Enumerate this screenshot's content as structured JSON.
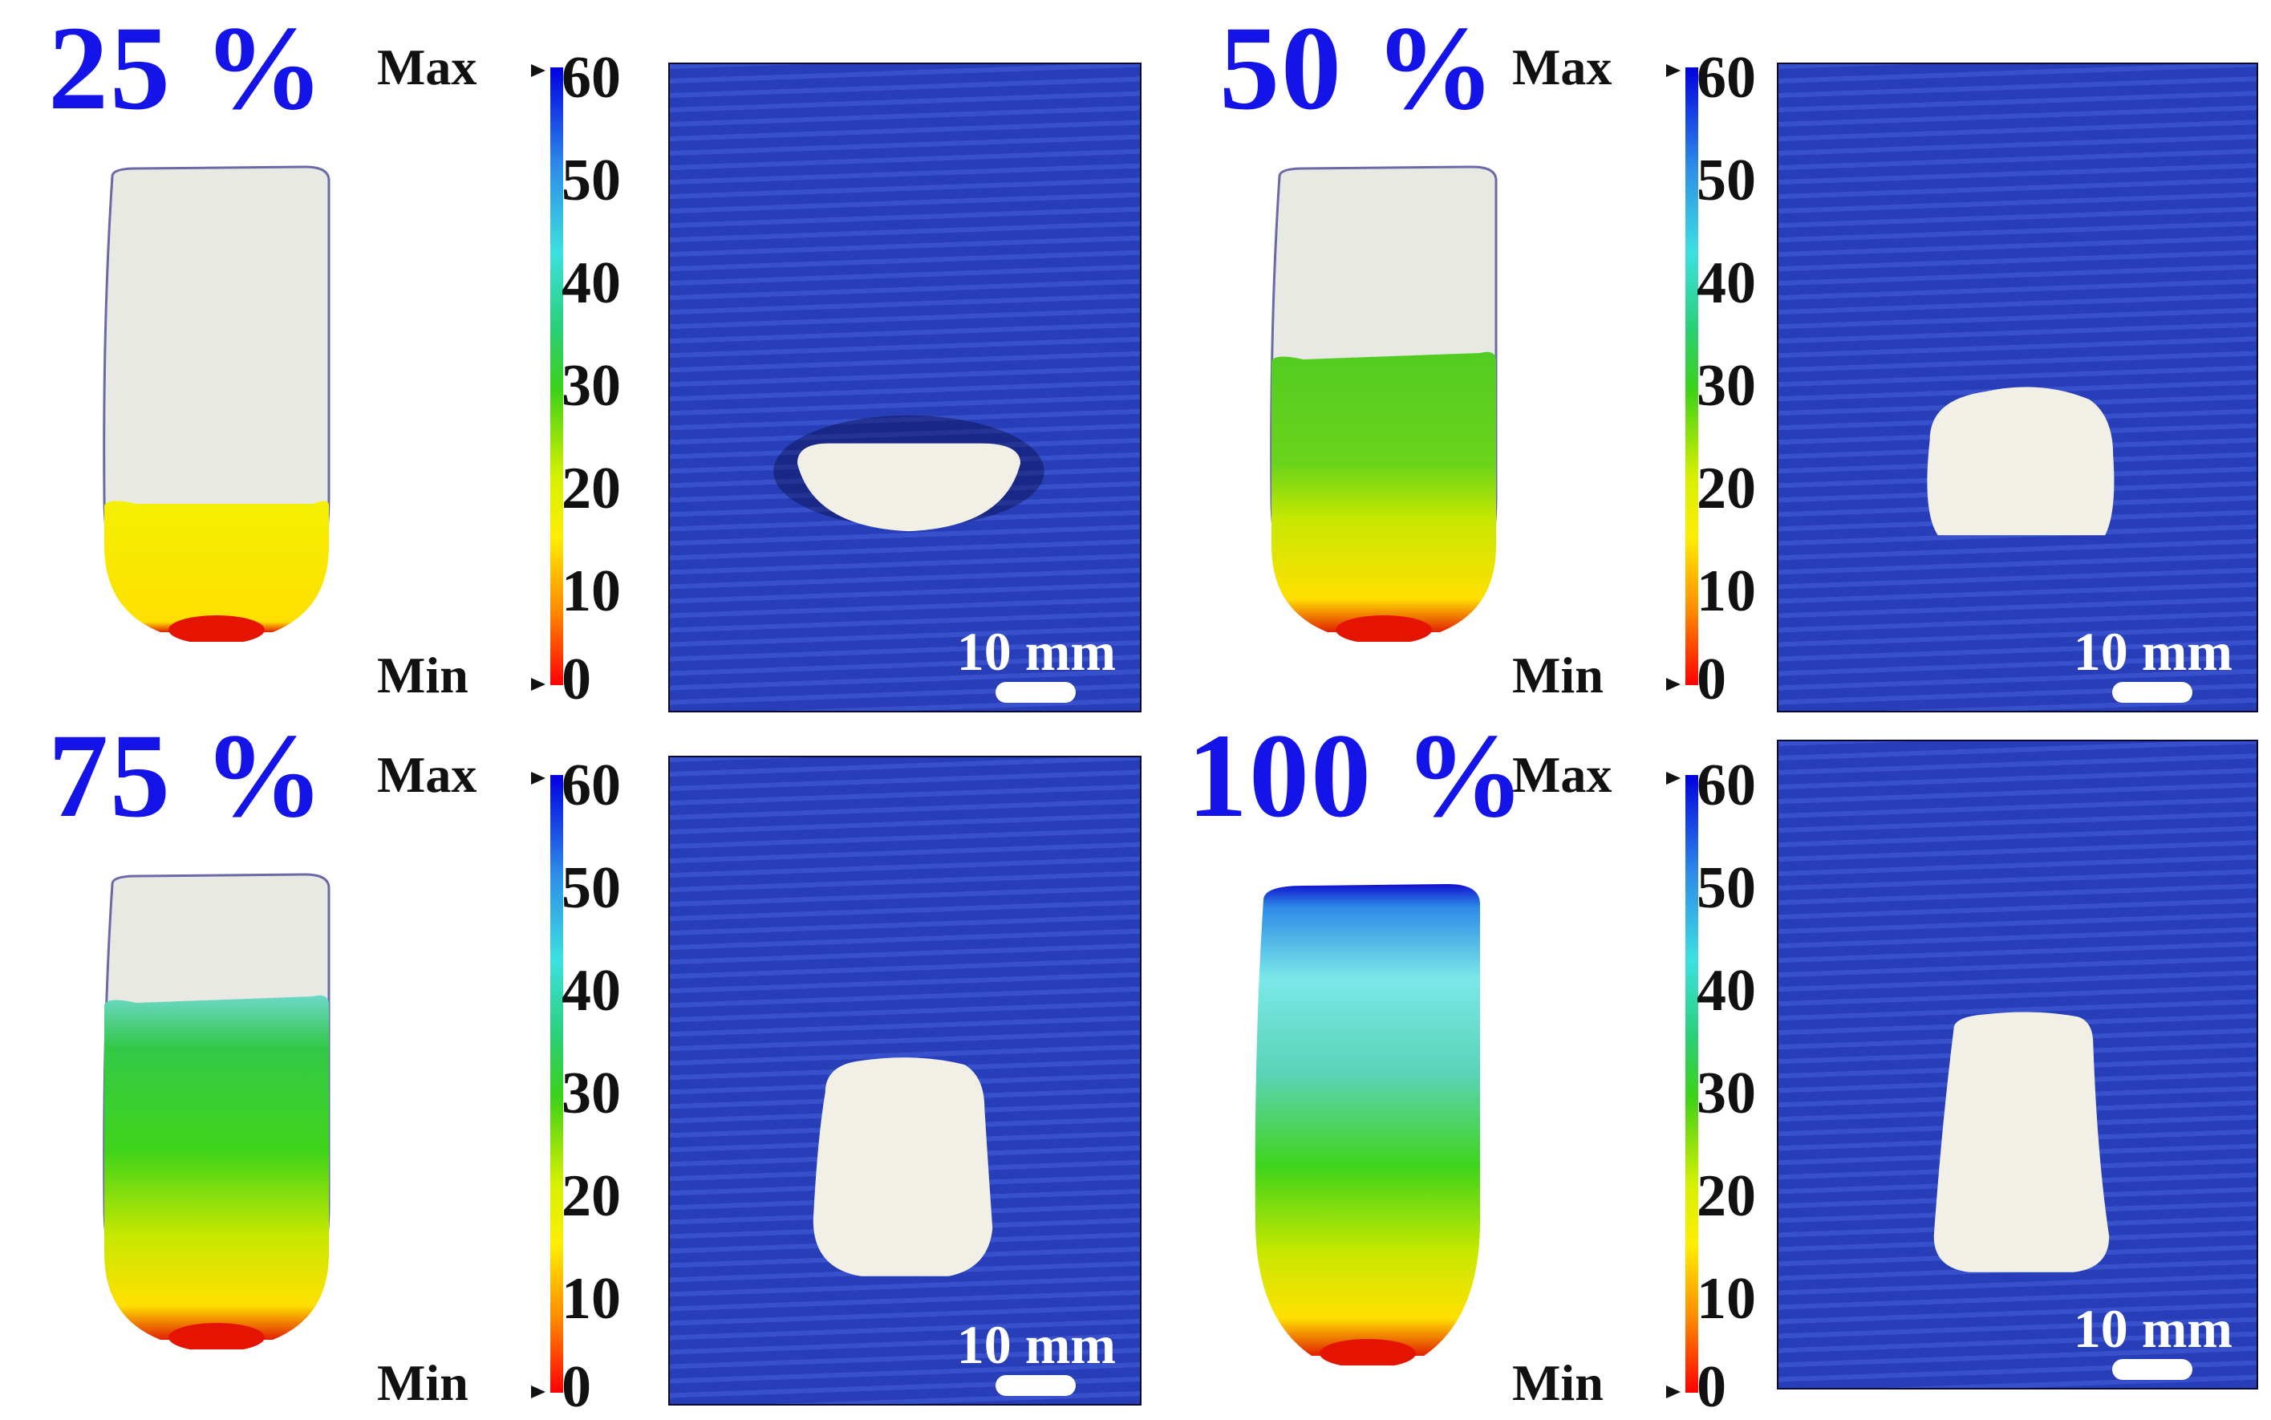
{
  "panels": [
    {
      "label": "25 %",
      "fill_fraction": 0.25,
      "colorbar": {
        "max_label": "Max",
        "min_label": "Min",
        "ticks": [
          "60",
          "50",
          "40",
          "30",
          "20",
          "10",
          "0"
        ]
      },
      "scale_bar": "10 mm"
    },
    {
      "label": "50 %",
      "fill_fraction": 0.5,
      "colorbar": {
        "max_label": "Max",
        "min_label": "Min",
        "ticks": [
          "60",
          "50",
          "40",
          "30",
          "20",
          "10",
          "0"
        ]
      },
      "scale_bar": "10 mm"
    },
    {
      "label": "75 %",
      "fill_fraction": 0.75,
      "colorbar": {
        "max_label": "Max",
        "min_label": "Min",
        "ticks": [
          "60",
          "50",
          "40",
          "30",
          "20",
          "10",
          "0"
        ]
      },
      "scale_bar": "10 mm"
    },
    {
      "label": "100 %",
      "fill_fraction": 1.0,
      "colorbar": {
        "max_label": "Max",
        "min_label": "Min",
        "ticks": [
          "60",
          "50",
          "40",
          "30",
          "20",
          "10",
          "0"
        ]
      },
      "scale_bar": "10 mm"
    }
  ],
  "colors": {
    "label_blue": "#1414e8",
    "background_board": "#2b45c9",
    "sample_white": "#f2f0e6"
  }
}
